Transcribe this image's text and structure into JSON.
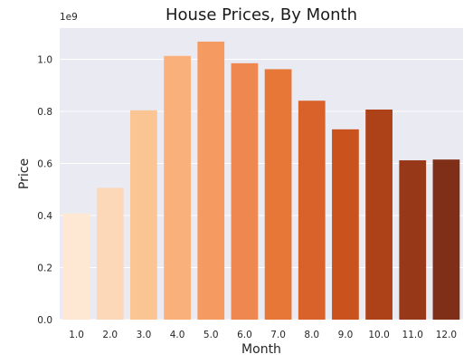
{
  "chart_data": {
    "type": "bar",
    "title": "House Prices, By Month",
    "xlabel": "Month",
    "ylabel": "Price",
    "y_offset_label": "1e9",
    "categories": [
      "1.0",
      "2.0",
      "3.0",
      "4.0",
      "5.0",
      "6.0",
      "7.0",
      "8.0",
      "9.0",
      "10.0",
      "11.0",
      "12.0"
    ],
    "values": [
      0.408,
      0.506,
      0.804,
      1.013,
      1.068,
      0.985,
      0.962,
      0.841,
      0.731,
      0.807,
      0.612,
      0.615
    ],
    "value_unit": "1e9",
    "ylim": [
      0,
      1.12
    ],
    "yticks": [
      0.0,
      0.2,
      0.4,
      0.6,
      0.8,
      1.0
    ],
    "ytick_labels": [
      "0.0",
      "0.2",
      "0.4",
      "0.6",
      "0.8",
      "1.0"
    ],
    "grid": true,
    "legend": "none",
    "plot_background": "#eaeaf2",
    "grid_color": "#ffffff",
    "bar_colors": [
      "#fee8d4",
      "#fcd7b8",
      "#fbc493",
      "#f9b07a",
      "#f59b62",
      "#ee8850",
      "#e77737",
      "#d9622a",
      "#c9521d",
      "#ad4118",
      "#973818",
      "#7f2f18"
    ]
  }
}
